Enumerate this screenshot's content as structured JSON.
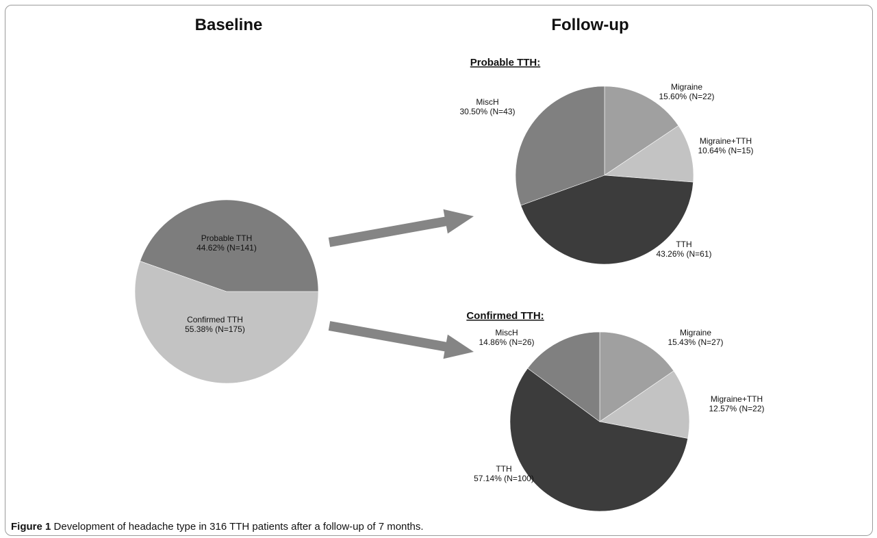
{
  "headings": {
    "baseline": "Baseline",
    "followup": "Follow-up"
  },
  "caption": {
    "label": "Figure 1",
    "text": "Development of headache type in 316 TTH patients after a follow-up of 7 months."
  },
  "colors": {
    "migraine": "#a0a0a0",
    "migraine_tth": "#c3c3c3",
    "tth": "#3c3c3c",
    "misch": "#808080",
    "probable_tth": "#7d7d7d",
    "confirmed_tth": "#c3c3c3",
    "arrow": "#858585"
  },
  "chart_data": [
    {
      "type": "pie",
      "title": "Baseline",
      "slices": [
        {
          "name": "Probable TTH",
          "percent": 44.62,
          "n": 141,
          "label": "Probable TTH",
          "value_label": "44.62% (N=141)"
        },
        {
          "name": "Confirmed TTH",
          "percent": 55.38,
          "n": 175,
          "label": "Confirmed TTH",
          "value_label": "55.38% (N=175)"
        }
      ]
    },
    {
      "type": "pie",
      "title": "Probable TTH:",
      "slices": [
        {
          "name": "Migraine",
          "percent": 15.6,
          "n": 22,
          "label": "Migraine",
          "value_label": "15.60% (N=22)"
        },
        {
          "name": "Migraine+TTH",
          "percent": 10.64,
          "n": 15,
          "label": "Migraine+TTH",
          "value_label": "10.64% (N=15)"
        },
        {
          "name": "TTH",
          "percent": 43.26,
          "n": 61,
          "label": "TTH",
          "value_label": "43.26% (N=61)"
        },
        {
          "name": "MiscH",
          "percent": 30.5,
          "n": 43,
          "label": "MiscH",
          "value_label": "30.50% (N=43)"
        }
      ]
    },
    {
      "type": "pie",
      "title": "Confirmed TTH:",
      "slices": [
        {
          "name": "Migraine",
          "percent": 15.43,
          "n": 27,
          "label": "Migraine",
          "value_label": "15.43% (N=27)"
        },
        {
          "name": "Migraine+TTH",
          "percent": 12.57,
          "n": 22,
          "label": "Migraine+TTH",
          "value_label": "12.57% (N=22)"
        },
        {
          "name": "TTH",
          "percent": 57.14,
          "n": 100,
          "label": "TTH",
          "value_label": "57.14% (N=100)"
        },
        {
          "name": "MiscH",
          "percent": 14.86,
          "n": 26,
          "label": "MiscH",
          "value_label": "14.86% (N=26)"
        }
      ]
    }
  ]
}
